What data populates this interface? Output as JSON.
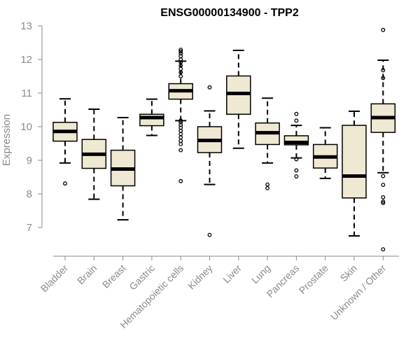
{
  "chart_data": {
    "type": "boxplot",
    "title": "ENSG00000134900 - TPP2",
    "xlabel": "",
    "ylabel": "Expression",
    "ylim": [
      6.55,
      13.05
    ],
    "yticks": [
      7,
      8,
      9,
      10,
      11,
      12,
      13
    ],
    "box_fill": "#efe8d2",
    "categories": [
      "Bladder",
      "Brain",
      "Breast",
      "Gastric",
      "Hematopoietic cells",
      "Kidney",
      "Liver",
      "Lung",
      "Pancreas",
      "Prostate",
      "Skin",
      "Unknown / Other"
    ],
    "boxes": [
      {
        "whisker_low": 8.92,
        "q1": 9.57,
        "median": 9.86,
        "q3": 10.13,
        "whisker_high": 10.83,
        "outliers": [
          8.31
        ]
      },
      {
        "whisker_low": 7.84,
        "q1": 8.76,
        "median": 9.18,
        "q3": 9.62,
        "whisker_high": 10.52,
        "outliers": []
      },
      {
        "whisker_low": 7.23,
        "q1": 8.24,
        "median": 8.74,
        "q3": 9.3,
        "whisker_high": 10.27,
        "outliers": []
      },
      {
        "whisker_low": 9.74,
        "q1": 10.03,
        "median": 10.27,
        "q3": 10.37,
        "whisker_high": 10.82,
        "outliers": []
      },
      {
        "whisker_low": 10.18,
        "q1": 10.82,
        "median": 11.07,
        "q3": 11.28,
        "whisker_high": 11.95,
        "outliers": [
          12.29,
          12.24,
          12.18,
          12.1,
          12.0,
          11.92,
          11.82,
          11.72,
          11.62,
          11.5,
          10.18,
          10.13,
          10.05,
          9.97,
          9.88,
          9.78,
          9.68,
          9.58,
          9.48,
          9.3,
          8.38
        ]
      },
      {
        "whisker_low": 8.28,
        "q1": 9.23,
        "median": 9.59,
        "q3": 10.0,
        "whisker_high": 10.47,
        "outliers": [
          11.17,
          6.78
        ]
      },
      {
        "whisker_low": 9.36,
        "q1": 10.37,
        "median": 10.99,
        "q3": 11.51,
        "whisker_high": 12.27,
        "outliers": []
      },
      {
        "whisker_low": 8.92,
        "q1": 9.47,
        "median": 9.82,
        "q3": 10.11,
        "whisker_high": 10.85,
        "outliers": [
          8.28,
          8.17
        ]
      },
      {
        "whisker_low": 9.07,
        "q1": 9.46,
        "median": 9.53,
        "q3": 9.73,
        "whisker_high": 10.04,
        "outliers": [
          10.38,
          10.18,
          9.03,
          8.7,
          8.52
        ]
      },
      {
        "whisker_low": 8.46,
        "q1": 8.77,
        "median": 9.1,
        "q3": 9.47,
        "whisker_high": 9.97,
        "outliers": []
      },
      {
        "whisker_low": 6.75,
        "q1": 7.88,
        "median": 8.53,
        "q3": 10.04,
        "whisker_high": 10.46,
        "outliers": []
      },
      {
        "whisker_low": 8.63,
        "q1": 9.83,
        "median": 10.27,
        "q3": 10.68,
        "whisker_high": 11.98,
        "outliers": [
          12.88,
          11.68,
          11.45,
          8.53,
          8.27,
          7.9,
          7.77,
          7.73,
          6.35
        ]
      }
    ]
  }
}
